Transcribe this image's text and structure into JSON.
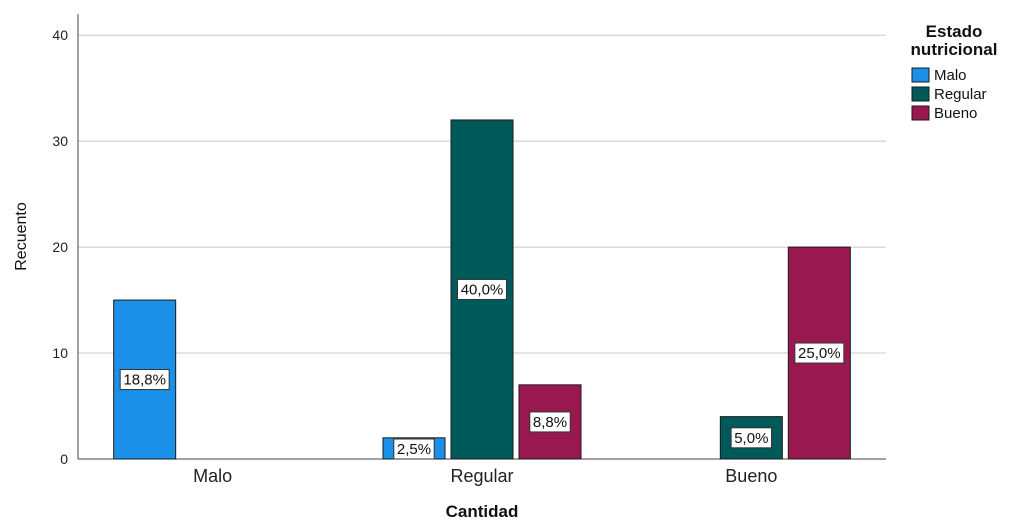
{
  "chart_data": {
    "type": "bar",
    "categories": [
      "Malo",
      "Regular",
      "Bueno"
    ],
    "series": [
      {
        "name": "Malo",
        "color": "#1a90e8",
        "values": [
          15,
          2,
          0
        ],
        "labels": [
          "18,8%",
          "2,5%",
          ""
        ]
      },
      {
        "name": "Regular",
        "color": "#005a5a",
        "values": [
          0,
          32,
          4
        ],
        "labels": [
          "",
          "40,0%",
          "5,0%"
        ]
      },
      {
        "name": "Bueno",
        "color": "#9a1850",
        "values": [
          0,
          7,
          20
        ],
        "labels": [
          "",
          "8,8%",
          "25,0%"
        ]
      }
    ],
    "xlabel": "Cantidad",
    "ylabel": "Recuento",
    "ylim": [
      0,
      42
    ],
    "yticks": [
      0,
      10,
      20,
      30,
      40
    ],
    "grid": true,
    "legend_title_lines": [
      "Estado",
      "nutricional"
    ],
    "legend_position": "top-right"
  }
}
